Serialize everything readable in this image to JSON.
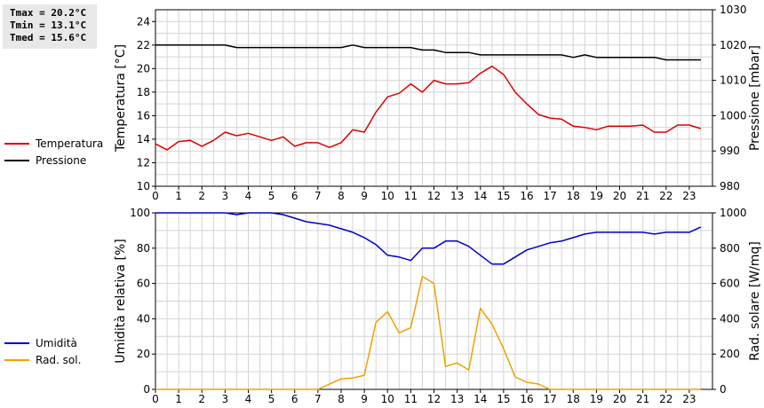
{
  "stats": {
    "tmax": "Tmax = 20.2°C",
    "tmin": "Tmin = 13.1°C",
    "tmed": "Tmed = 15.6°C"
  },
  "colors": {
    "temperature": "#dd0000",
    "pressure": "#000000",
    "humidity": "#0000cc",
    "radiation": "#f0a000",
    "grid": "#d4d4d4"
  },
  "chart_data": [
    {
      "type": "line",
      "x_ticks": [
        "0",
        "1",
        "2",
        "3",
        "4",
        "5",
        "6",
        "7",
        "8",
        "9",
        "10",
        "11",
        "12",
        "13",
        "14",
        "15",
        "16",
        "17",
        "18",
        "19",
        "20",
        "21",
        "22",
        "23"
      ],
      "ylabel": "Temperatura [°C]",
      "y2label": "Pressione [mbar]",
      "ylim": [
        10,
        25
      ],
      "y_ticks": [
        "10",
        "12",
        "14",
        "16",
        "18",
        "20",
        "22",
        "24"
      ],
      "y2lim": [
        980,
        1030
      ],
      "y2_ticks": [
        "980",
        "990",
        "1000",
        "1010",
        "1020",
        "1030"
      ],
      "grid": true,
      "legend_position": "left",
      "series": [
        {
          "name": "Temperatura",
          "axis": "left",
          "color": "#dd0000",
          "x": [
            0,
            0.5,
            1,
            1.5,
            2,
            2.5,
            3,
            3.5,
            4,
            4.5,
            5,
            5.5,
            6,
            6.5,
            7,
            7.5,
            8,
            8.5,
            9,
            9.5,
            10,
            10.5,
            11,
            11.5,
            12,
            12.5,
            13,
            13.5,
            14,
            14.5,
            15,
            15.5,
            16,
            16.5,
            17,
            17.5,
            18,
            18.5,
            19,
            19.5,
            20,
            20.5,
            21,
            21.5,
            22,
            22.5,
            23,
            23.5
          ],
          "y": [
            13.6,
            13.1,
            13.8,
            13.9,
            13.4,
            13.9,
            14.6,
            14.3,
            14.5,
            14.2,
            13.9,
            14.2,
            13.4,
            13.7,
            13.7,
            13.3,
            13.7,
            14.8,
            14.6,
            16.3,
            17.6,
            17.9,
            18.7,
            18.0,
            19.0,
            18.7,
            18.7,
            18.8,
            19.6,
            20.2,
            19.5,
            18.0,
            17.0,
            16.1,
            15.8,
            15.7,
            15.1,
            15.0,
            14.8,
            15.1,
            15.1,
            15.1,
            15.2,
            14.6,
            14.6,
            15.2,
            15.2,
            14.9
          ]
        },
        {
          "name": "Pressione",
          "axis": "right",
          "color": "#000000",
          "x": [
            0,
            0.5,
            1,
            1.5,
            2,
            2.5,
            3,
            3.5,
            4,
            4.5,
            5,
            5.5,
            6,
            6.5,
            7,
            7.5,
            8,
            8.5,
            9,
            9.5,
            10,
            10.5,
            11,
            11.5,
            12,
            12.5,
            13,
            13.5,
            14,
            14.5,
            15,
            15.5,
            16,
            16.5,
            17,
            17.5,
            18,
            18.5,
            19,
            19.5,
            20,
            20.5,
            21,
            21.5,
            22,
            22.5,
            23,
            23.5
          ],
          "y": [
            1020,
            1020,
            1020,
            1020,
            1020,
            1020,
            1020,
            1019.3,
            1019.3,
            1019.3,
            1019.3,
            1019.3,
            1019.3,
            1019.3,
            1019.3,
            1019.3,
            1019.3,
            1020,
            1019.3,
            1019.3,
            1019.3,
            1019.3,
            1019.3,
            1018.6,
            1018.6,
            1017.9,
            1017.9,
            1017.9,
            1017.2,
            1017.2,
            1017.2,
            1017.2,
            1017.2,
            1017.2,
            1017.2,
            1017.2,
            1016.5,
            1017.2,
            1016.5,
            1016.5,
            1016.5,
            1016.5,
            1016.5,
            1016.5,
            1015.8,
            1015.8,
            1015.8,
            1015.8
          ]
        }
      ]
    },
    {
      "type": "line",
      "x_ticks": [
        "0",
        "1",
        "2",
        "3",
        "4",
        "5",
        "6",
        "7",
        "8",
        "9",
        "10",
        "11",
        "12",
        "13",
        "14",
        "15",
        "16",
        "17",
        "18",
        "19",
        "20",
        "21",
        "22",
        "23"
      ],
      "ylabel": "Umidità relativa [%]",
      "y2label": "Rad. solare [W/mq]",
      "ylim": [
        0,
        100
      ],
      "y_ticks": [
        "0",
        "20",
        "40",
        "60",
        "80",
        "100"
      ],
      "y2lim": [
        0,
        1000
      ],
      "y2_ticks": [
        "0",
        "200",
        "400",
        "600",
        "800",
        "1000"
      ],
      "grid": true,
      "legend_position": "left",
      "series": [
        {
          "name": "Umidità",
          "axis": "left",
          "color": "#0000cc",
          "x": [
            0,
            0.5,
            1,
            1.5,
            2,
            2.5,
            3,
            3.5,
            4,
            4.5,
            5,
            5.5,
            6,
            6.5,
            7,
            7.5,
            8,
            8.5,
            9,
            9.5,
            10,
            10.5,
            11,
            11.5,
            12,
            12.5,
            13,
            13.5,
            14,
            14.5,
            15,
            15.5,
            16,
            16.5,
            17,
            17.5,
            18,
            18.5,
            19,
            19.5,
            20,
            20.5,
            21,
            21.5,
            22,
            22.5,
            23,
            23.5
          ],
          "y": [
            100,
            100,
            100,
            100,
            100,
            100,
            100,
            99,
            100,
            100,
            100,
            99,
            97,
            95,
            94,
            93,
            91,
            89,
            86,
            82,
            76,
            75,
            73,
            80,
            80,
            84,
            84,
            81,
            76,
            71,
            71,
            75,
            79,
            81,
            83,
            84,
            86,
            88,
            89,
            89,
            89,
            89,
            89,
            88,
            89,
            89,
            89,
            92
          ]
        },
        {
          "name": "Rad. sol.",
          "axis": "right",
          "color": "#f0a000",
          "x": [
            0,
            0.5,
            1,
            1.5,
            2,
            2.5,
            3,
            3.5,
            4,
            4.5,
            5,
            5.5,
            6,
            6.5,
            7,
            7.5,
            8,
            8.5,
            9,
            9.5,
            10,
            10.5,
            11,
            11.5,
            12,
            12.5,
            13,
            13.5,
            14,
            14.5,
            15,
            15.5,
            16,
            16.5,
            17,
            17.5,
            18,
            18.5,
            19,
            19.5,
            20,
            20.5,
            21,
            21.5,
            22,
            22.5,
            23,
            23.5
          ],
          "y": [
            0,
            0,
            0,
            0,
            0,
            0,
            0,
            0,
            0,
            0,
            0,
            0,
            0,
            0,
            0,
            30,
            60,
            65,
            80,
            380,
            440,
            320,
            350,
            640,
            600,
            130,
            150,
            110,
            460,
            370,
            230,
            70,
            40,
            30,
            0,
            0,
            0,
            0,
            0,
            0,
            0,
            0,
            0,
            0,
            0,
            0,
            0,
            0
          ]
        }
      ]
    }
  ]
}
